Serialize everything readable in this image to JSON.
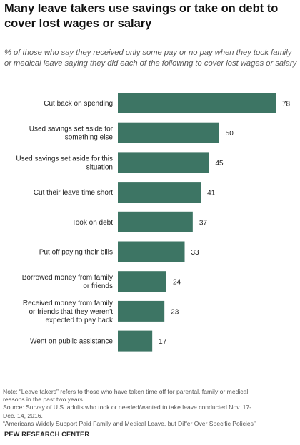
{
  "title": "Many leave takers use savings or take on debt to cover lost wages or salary",
  "subtitle": "% of those who say they received only some pay or no pay when they took family or medical leave saying they did each of the following to cover lost wages or salary",
  "chart_data": {
    "type": "bar",
    "orientation": "horizontal",
    "categories": [
      [
        "Cut back on spending"
      ],
      [
        "Used savings set aside for",
        "something else"
      ],
      [
        "Used savings set aside for this",
        "situation"
      ],
      [
        "Cut their leave time short"
      ],
      [
        "Took on debt"
      ],
      [
        "Put off paying their bills"
      ],
      [
        "Borrowed money from family",
        "or friends"
      ],
      [
        "Received money from family",
        "or friends that they weren't",
        "expected to pay back"
      ],
      [
        "Went on public assistance"
      ]
    ],
    "values": [
      78,
      50,
      45,
      41,
      37,
      33,
      24,
      23,
      17
    ],
    "xlim": [
      0,
      78
    ],
    "bar_color": "#3d7564",
    "grid": false,
    "legend": "none"
  },
  "notes": {
    "note_lines": [
      "Note: “Leave takers” refers to those who have taken time off for parental, family or medical",
      "reasons in the past two years."
    ],
    "source_lines": [
      "Source: Survey of U.S. adults who took or needed/wanted to take leave conducted Nov. 17-",
      "Dec. 14, 2016.",
      "“Americans Widely Support Paid Family and Medical Leave, but Differ Over Specific Policies”"
    ]
  },
  "brand": "PEW RESEARCH CENTER"
}
